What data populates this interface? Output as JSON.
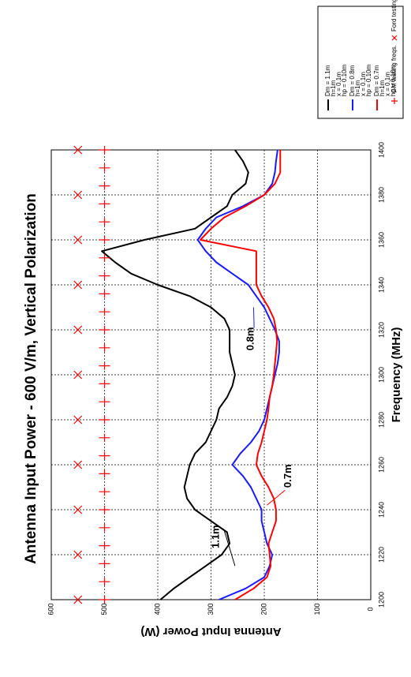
{
  "chart_data": {
    "type": "line",
    "orientation": "rotated-90-ccw",
    "title": "Antenna Input Power - 600 V/m, Vertical Polarization",
    "xlabel": "Frequency (MHz)",
    "ylabel": "Antenna Input Power (W)",
    "xlim": [
      1200,
      1400
    ],
    "ylim": [
      0,
      600
    ],
    "xticks": [
      1200,
      1220,
      1240,
      1260,
      1280,
      1300,
      1320,
      1340,
      1360,
      1380,
      1400
    ],
    "yticks": [
      0,
      100,
      200,
      300,
      400,
      500,
      600
    ],
    "grid": true,
    "legend_position": "top-right",
    "series": [
      {
        "name": "Dm = 1.1m",
        "legend_lines": [
          "Dm = 1.1m",
          "h=1m",
          "x = 0.1m",
          "hp = 0.10m"
        ],
        "color": "#000000",
        "x": [
          1200,
          1205,
          1210,
          1215,
          1220,
          1225,
          1230,
          1235,
          1240,
          1245,
          1250,
          1255,
          1260,
          1265,
          1270,
          1275,
          1280,
          1285,
          1290,
          1295,
          1300,
          1305,
          1310,
          1315,
          1320,
          1325,
          1330,
          1335,
          1340,
          1345,
          1350,
          1355,
          1360,
          1365,
          1370,
          1375,
          1380,
          1385,
          1390,
          1395,
          1400
        ],
        "y": [
          395,
          370,
          340,
          310,
          280,
          265,
          270,
          300,
          330,
          345,
          350,
          345,
          340,
          330,
          310,
          300,
          290,
          285,
          270,
          260,
          255,
          260,
          265,
          265,
          265,
          275,
          300,
          340,
          400,
          450,
          480,
          505,
          425,
          330,
          300,
          270,
          260,
          235,
          230,
          240,
          255
        ]
      },
      {
        "name": "Dm = 0.8m",
        "legend_lines": [
          "Dm = 0.8m",
          "h=1m",
          "x = 0.1m",
          "hp = 0.10m"
        ],
        "color": "#1a1aff",
        "x": [
          1200,
          1205,
          1210,
          1215,
          1220,
          1225,
          1230,
          1235,
          1240,
          1245,
          1250,
          1255,
          1260,
          1265,
          1270,
          1275,
          1280,
          1285,
          1290,
          1295,
          1300,
          1305,
          1310,
          1315,
          1320,
          1325,
          1330,
          1335,
          1340,
          1345,
          1350,
          1355,
          1360,
          1365,
          1370,
          1375,
          1380,
          1385,
          1390,
          1395,
          1400
        ],
        "y": [
          285,
          235,
          200,
          190,
          185,
          195,
          200,
          205,
          205,
          215,
          225,
          240,
          260,
          245,
          225,
          210,
          200,
          195,
          190,
          185,
          180,
          175,
          172,
          172,
          180,
          190,
          200,
          215,
          230,
          260,
          290,
          310,
          325,
          310,
          290,
          240,
          200,
          185,
          180,
          178,
          175
        ]
      },
      {
        "name": "Dm = 0.7m",
        "legend_lines": [
          "Dm = 0.7m",
          "h=1m",
          "x = 0.1m",
          "hp = 0.10m"
        ],
        "color": "#ff0000",
        "x": [
          1200,
          1205,
          1210,
          1215,
          1220,
          1225,
          1230,
          1235,
          1240,
          1245,
          1250,
          1255,
          1260,
          1265,
          1270,
          1275,
          1280,
          1285,
          1290,
          1295,
          1300,
          1305,
          1310,
          1315,
          1320,
          1325,
          1330,
          1335,
          1340,
          1345,
          1350,
          1355,
          1360,
          1365,
          1370,
          1375,
          1380,
          1385,
          1390,
          1395,
          1400
        ],
        "y": [
          255,
          220,
          195,
          188,
          190,
          192,
          185,
          178,
          178,
          182,
          192,
          205,
          215,
          212,
          205,
          200,
          195,
          192,
          190,
          185,
          182,
          180,
          178,
          176,
          178,
          182,
          192,
          205,
          215,
          215,
          215,
          215,
          320,
          300,
          275,
          235,
          200,
          180,
          170,
          170,
          170
        ]
      }
    ],
    "markers": [
      {
        "name": "GM testing freqs.",
        "symbol": "+",
        "color": "#ff0000",
        "y": 500,
        "x": [
          1200,
          1208,
          1216,
          1224,
          1232,
          1240,
          1248,
          1256,
          1264,
          1272,
          1280,
          1288,
          1296,
          1304,
          1312,
          1320,
          1328,
          1336,
          1344,
          1352,
          1360,
          1368,
          1376,
          1384,
          1392,
          1400
        ]
      },
      {
        "name": "Ford testing freqs.",
        "symbol": "×",
        "color": "#ff0000",
        "y": 550,
        "x": [
          1200,
          1220,
          1240,
          1260,
          1280,
          1300,
          1320,
          1340,
          1360,
          1380,
          1400
        ]
      }
    ],
    "annotations": [
      {
        "text": "1.1m",
        "x": 1228,
        "y": 290
      },
      {
        "text": "0.7m",
        "x": 1255,
        "y": 155
      },
      {
        "text": "0.8m",
        "x": 1316,
        "y": 225
      }
    ]
  }
}
